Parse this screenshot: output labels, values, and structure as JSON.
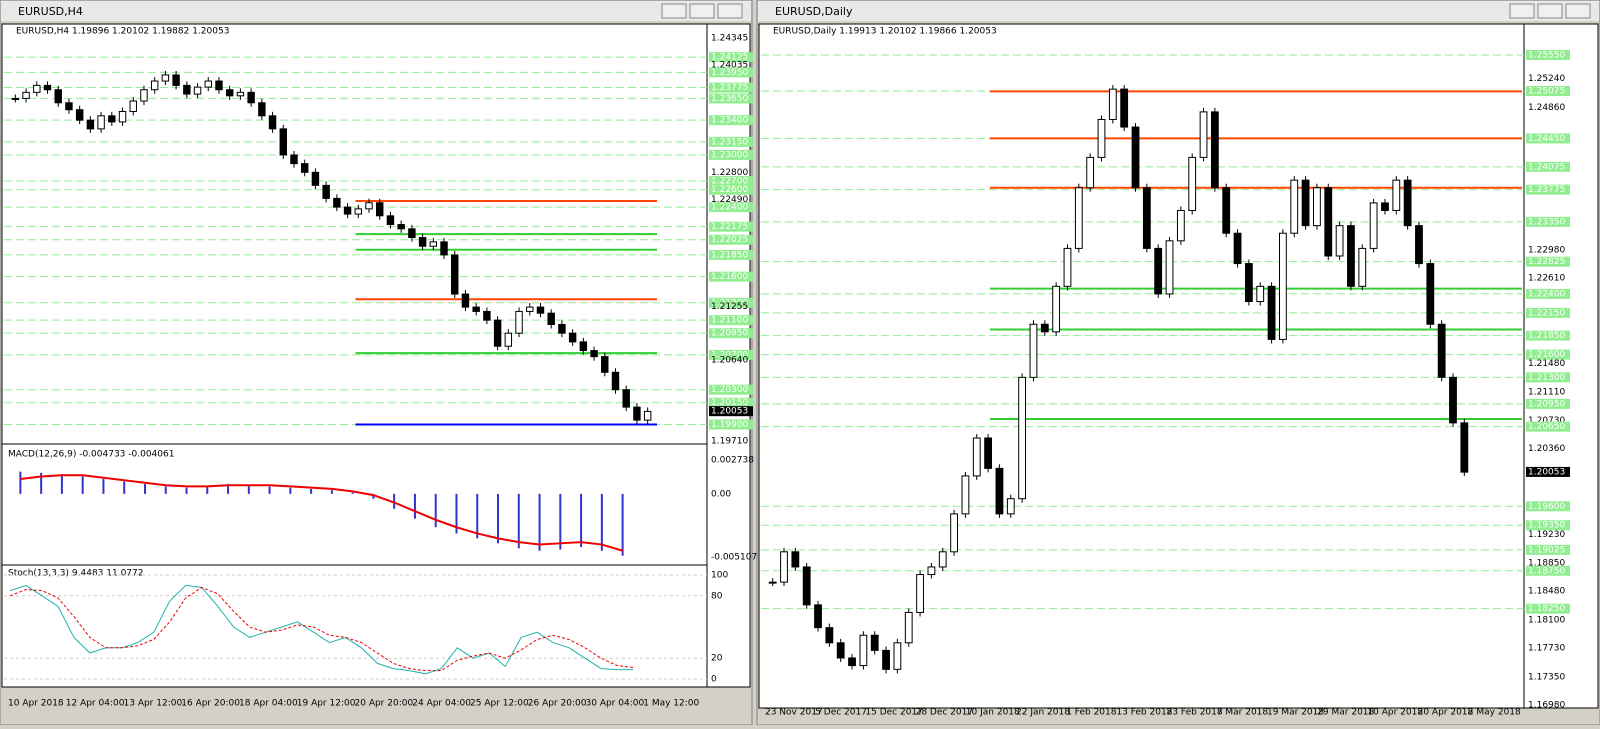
{
  "windows": [
    {
      "title": "EURUSD,H4",
      "info": "EURUSD,H4  1.19896 1.20102 1.19882 1.20053",
      "price_labels": [
        [
          "1.24345",
          0
        ],
        [
          "1.24125",
          1
        ],
        [
          "1.24035",
          0
        ],
        [
          "1.23950",
          1
        ],
        [
          "1.23775",
          1
        ],
        [
          "1.23650",
          1
        ],
        [
          "1.23400",
          1
        ],
        [
          "1.23150",
          1
        ],
        [
          "1.23000",
          1
        ],
        [
          "1.22800",
          0
        ],
        [
          "1.22700",
          1
        ],
        [
          "1.22600",
          1
        ],
        [
          "1.22490",
          0
        ],
        [
          "1.22400",
          1
        ],
        [
          "1.22175",
          1
        ],
        [
          "1.22025",
          1
        ],
        [
          "1.21850",
          1
        ],
        [
          "1.21600",
          1
        ],
        [
          "1.21300",
          1
        ],
        [
          "1.21255",
          0
        ],
        [
          "1.21100",
          1
        ],
        [
          "1.20950",
          1
        ],
        [
          "1.20700",
          1
        ],
        [
          "1.20640",
          0
        ],
        [
          "1.20300",
          1
        ],
        [
          "1.20150",
          1
        ],
        [
          "1.20053",
          2
        ],
        [
          "1.19900",
          1
        ],
        [
          "1.19710",
          0
        ]
      ],
      "levels": [
        {
          "value": 1.2247,
          "color": "#ff4500"
        },
        {
          "value": 1.2209,
          "color": "#32cd32"
        },
        {
          "value": 1.2191,
          "color": "#32cd32"
        },
        {
          "value": 1.2134,
          "color": "#ff4500"
        },
        {
          "value": 1.2072,
          "color": "#32cd32"
        },
        {
          "value": 1.199,
          "color": "#0000ff"
        }
      ],
      "closes": [
        1.2365,
        1.2372,
        1.238,
        1.2375,
        1.236,
        1.2352,
        1.234,
        1.233,
        1.2345,
        1.2338,
        1.235,
        1.2362,
        1.2375,
        1.2385,
        1.2392,
        1.238,
        1.237,
        1.2378,
        1.2385,
        1.2375,
        1.2368,
        1.2372,
        1.236,
        1.2345,
        1.233,
        1.23,
        1.229,
        1.228,
        1.2265,
        1.225,
        1.224,
        1.2232,
        1.2238,
        1.2245,
        1.223,
        1.222,
        1.2215,
        1.2205,
        1.2195,
        1.22,
        1.2185,
        1.214,
        1.2125,
        1.212,
        1.211,
        1.208,
        1.2095,
        1.212,
        1.2125,
        1.2118,
        1.2105,
        1.2095,
        1.2085,
        1.2075,
        1.2068,
        1.205,
        1.203,
        1.201,
        1.1995,
        1.2005
      ],
      "time_labels": [
        "10 Apr 2018",
        "12 Apr 04:00",
        "13 Apr 12:00",
        "16 Apr 20:00",
        "18 Apr 04:00",
        "19 Apr 12:00",
        "20 Apr 20:00",
        "24 Apr 04:00",
        "25 Apr 12:00",
        "26 Apr 20:00",
        "30 Apr 04:00",
        "1 May 12:00"
      ],
      "macd": {
        "info": "MACD(12,26,9) -0.004733 -0.004061",
        "axis_labels": [
          "0.002738",
          "0.00",
          "-0.005107"
        ],
        "histogram": [
          0.0018,
          0.0017,
          0.0016,
          0.0014,
          0.0012,
          0.001,
          0.0008,
          0.0006,
          0.0005,
          0.0006,
          0.0008,
          0.0007,
          0.0006,
          0.0005,
          0.0004,
          0.0003,
          0.0001,
          -0.0004,
          -0.0012,
          -0.002,
          -0.0027,
          -0.0032,
          -0.0036,
          -0.004,
          -0.0044,
          -0.0046,
          -0.0045,
          -0.0043,
          -0.0046,
          -0.005
        ],
        "signal": [
          0.0012,
          0.0014,
          0.0015,
          0.0015,
          0.0013,
          0.0011,
          0.0009,
          0.0007,
          0.0006,
          0.0006,
          0.0007,
          0.0007,
          0.0007,
          0.0006,
          0.0005,
          0.0004,
          0.0002,
          -0.0001,
          -0.0007,
          -0.0014,
          -0.0021,
          -0.0027,
          -0.0032,
          -0.0036,
          -0.0039,
          -0.0041,
          -0.004,
          -0.0039,
          -0.0041,
          -0.0046
        ]
      },
      "stoch": {
        "info": "Stoch(13,3,3) 9.4483 11.0772",
        "axis_labels": [
          "100",
          "80",
          "20",
          "0"
        ],
        "main": [
          85,
          90,
          80,
          70,
          40,
          25,
          30,
          30,
          35,
          45,
          75,
          90,
          88,
          70,
          50,
          40,
          45,
          50,
          55,
          45,
          35,
          40,
          30,
          15,
          10,
          8,
          5,
          10,
          30,
          20,
          25,
          12,
          40,
          45,
          35,
          30,
          20,
          10,
          9,
          9
        ],
        "signal": [
          80,
          86,
          85,
          78,
          60,
          40,
          30,
          30,
          32,
          38,
          55,
          78,
          88,
          82,
          65,
          50,
          45,
          47,
          52,
          50,
          42,
          40,
          35,
          25,
          15,
          10,
          8,
          8,
          18,
          22,
          25,
          20,
          28,
          38,
          42,
          38,
          30,
          20,
          13,
          11
        ]
      }
    },
    {
      "title": "EURUSD,Daily",
      "info": "EURUSD,Daily  1.19913 1.20102 1.19866 1.20053",
      "price_labels": [
        [
          "1.25550",
          1
        ],
        [
          "1.25240",
          0
        ],
        [
          "1.25075",
          1
        ],
        [
          "1.24860",
          0
        ],
        [
          "1.24450",
          1
        ],
        [
          "1.24075",
          1
        ],
        [
          "1.23775",
          1
        ],
        [
          "1.23350",
          1
        ],
        [
          "1.22980",
          0
        ],
        [
          "1.22825",
          1
        ],
        [
          "1.22610",
          0
        ],
        [
          "1.22400",
          1
        ],
        [
          "1.22150",
          1
        ],
        [
          "1.21850",
          1
        ],
        [
          "1.21600",
          1
        ],
        [
          "1.21480",
          0
        ],
        [
          "1.21300",
          1
        ],
        [
          "1.21110",
          0
        ],
        [
          "1.20950",
          1
        ],
        [
          "1.20730",
          0
        ],
        [
          "1.20650",
          1
        ],
        [
          "1.20360",
          0
        ],
        [
          "1.20053",
          2
        ],
        [
          "1.19600",
          1
        ],
        [
          "1.19350",
          1
        ],
        [
          "1.19230",
          0
        ],
        [
          "1.19025",
          1
        ],
        [
          "1.18850",
          0
        ],
        [
          "1.18750",
          1
        ],
        [
          "1.18480",
          0
        ],
        [
          "1.18250",
          1
        ],
        [
          "1.18100",
          0
        ],
        [
          "1.17730",
          0
        ],
        [
          "1.17350",
          0
        ],
        [
          "1.16980",
          0
        ]
      ],
      "levels": [
        {
          "value": 1.2507,
          "color": "#ff4500"
        },
        {
          "value": 1.2445,
          "color": "#ff4500"
        },
        {
          "value": 1.238,
          "color": "#ff4500"
        },
        {
          "value": 1.2247,
          "color": "#32cd32"
        },
        {
          "value": 1.2193,
          "color": "#32cd32"
        },
        {
          "value": 1.2075,
          "color": "#32cd32"
        }
      ],
      "closes": [
        1.186,
        1.19,
        1.188,
        1.183,
        1.18,
        1.178,
        1.176,
        1.175,
        1.179,
        1.177,
        1.1745,
        1.178,
        1.182,
        1.187,
        1.188,
        1.19,
        1.195,
        1.2,
        1.205,
        1.201,
        1.195,
        1.197,
        1.213,
        1.22,
        1.219,
        1.225,
        1.23,
        1.238,
        1.242,
        1.247,
        1.251,
        1.246,
        1.238,
        1.23,
        1.224,
        1.231,
        1.235,
        1.242,
        1.248,
        1.238,
        1.232,
        1.228,
        1.223,
        1.225,
        1.218,
        1.232,
        1.239,
        1.233,
        1.238,
        1.229,
        1.233,
        1.225,
        1.23,
        1.236,
        1.235,
        1.239,
        1.233,
        1.228,
        1.22,
        1.213,
        1.207,
        1.2005
      ],
      "time_labels": [
        "23 Nov 2017",
        "5 Dec 2017",
        "15 Dec 2017",
        "28 Dec 2017",
        "10 Jan 2018",
        "22 Jan 2018",
        "1 Feb 2018",
        "13 Feb 2018",
        "23 Feb 2018",
        "7 Mar 2018",
        "19 Mar 2018",
        "29 Mar 2018",
        "10 Apr 2018",
        "20 Apr 2018",
        "2 May 2018"
      ]
    }
  ]
}
